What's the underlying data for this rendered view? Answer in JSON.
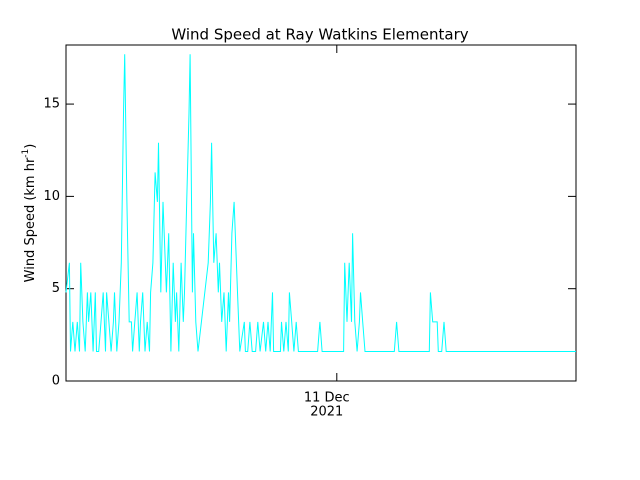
{
  "chart_data": {
    "type": "line",
    "title": "Wind Speed at Ray Watkins Elementary",
    "ylabel": "Wind Speed (km hr",
    "ylabel_sup": "-1",
    "ylabel_end": ")",
    "color": "#00ffff",
    "xlim": [
      0,
      45.2
    ],
    "xticks": [
      {
        "value": 24,
        "label": "11 Dec"
      }
    ],
    "xtick_sublabel": "2021",
    "ylim": [
      0,
      18.2
    ],
    "yticks": [
      0,
      5,
      10,
      15
    ],
    "x": [
      0,
      0.3,
      0.4,
      0.6,
      0.8,
      1.0,
      1.2,
      1.3,
      1.5,
      1.7,
      1.9,
      2.0,
      2.2,
      2.4,
      2.6,
      2.7,
      2.9,
      3.1,
      3.3,
      3.5,
      3.6,
      3.8,
      4.0,
      4.2,
      4.3,
      4.5,
      4.7,
      4.9,
      5.1,
      5.2,
      5.4,
      5.6,
      5.8,
      5.9,
      6.1,
      6.3,
      6.5,
      6.6,
      6.8,
      7.0,
      7.2,
      7.4,
      7.5,
      7.7,
      7.9,
      8.1,
      8.2,
      8.4,
      8.6,
      8.8,
      8.9,
      9.1,
      9.3,
      9.5,
      9.7,
      9.8,
      10.0,
      10.2,
      10.4,
      10.5,
      10.7,
      10.9,
      11.0,
      11.2,
      11.3,
      11.5,
      11.7,
      12.6,
      12.8,
      12.9,
      13.1,
      13.3,
      13.5,
      13.6,
      13.8,
      14.0,
      14.2,
      14.4,
      14.5,
      14.7,
      14.9,
      15.1,
      15.2,
      15.4,
      15.8,
      15.9,
      16.1,
      16.3,
      16.5,
      16.8,
      17.0,
      17.2,
      17.5,
      17.7,
      17.9,
      18.1,
      18.3,
      18.4,
      19.0,
      19.1,
      19.3,
      19.5,
      19.7,
      19.8,
      20.0,
      20.2,
      20.4,
      20.6,
      22.3,
      22.5,
      22.7,
      24.6,
      24.7,
      24.9,
      25.1,
      25.3,
      25.4,
      25.6,
      25.8,
      26.0,
      26.1,
      26.3,
      26.5,
      29.1,
      29.3,
      29.5,
      32.2,
      32.3,
      32.5,
      32.9,
      33.0,
      33.3,
      33.5,
      33.7,
      45.2
    ],
    "values": [
      4.8,
      6.4,
      1.6,
      3.2,
      1.6,
      3.2,
      1.6,
      6.4,
      3.2,
      1.6,
      4.8,
      3.2,
      4.8,
      1.6,
      4.8,
      1.6,
      1.6,
      3.2,
      4.8,
      1.6,
      4.8,
      3.2,
      1.6,
      3.2,
      4.8,
      1.6,
      3.2,
      6.4,
      14.5,
      17.7,
      9.7,
      3.2,
      3.2,
      1.6,
      3.2,
      4.8,
      1.6,
      3.2,
      4.8,
      1.6,
      3.2,
      1.6,
      4.8,
      6.4,
      11.3,
      9.7,
      12.9,
      4.8,
      9.7,
      6.4,
      4.8,
      8.0,
      1.6,
      6.4,
      3.2,
      4.8,
      1.6,
      6.4,
      3.2,
      4.8,
      9.7,
      14.5,
      17.7,
      4.8,
      8.0,
      3.2,
      1.6,
      6.4,
      9.7,
      12.9,
      6.4,
      8.0,
      4.8,
      6.4,
      3.2,
      4.8,
      1.6,
      4.8,
      3.2,
      8.0,
      9.7,
      6.4,
      4.8,
      1.6,
      3.2,
      1.6,
      1.6,
      3.2,
      1.6,
      1.6,
      3.2,
      1.6,
      3.2,
      1.6,
      3.2,
      1.6,
      4.8,
      1.6,
      1.6,
      3.2,
      1.6,
      3.2,
      1.6,
      4.8,
      3.2,
      1.6,
      3.2,
      1.6,
      1.6,
      3.2,
      1.6,
      1.6,
      6.4,
      3.2,
      6.4,
      3.2,
      8.0,
      3.2,
      1.6,
      3.2,
      4.8,
      3.2,
      1.6,
      1.6,
      3.2,
      1.6,
      1.6,
      4.8,
      3.2,
      3.2,
      1.6,
      1.6,
      3.2,
      1.6,
      1.6
    ]
  }
}
